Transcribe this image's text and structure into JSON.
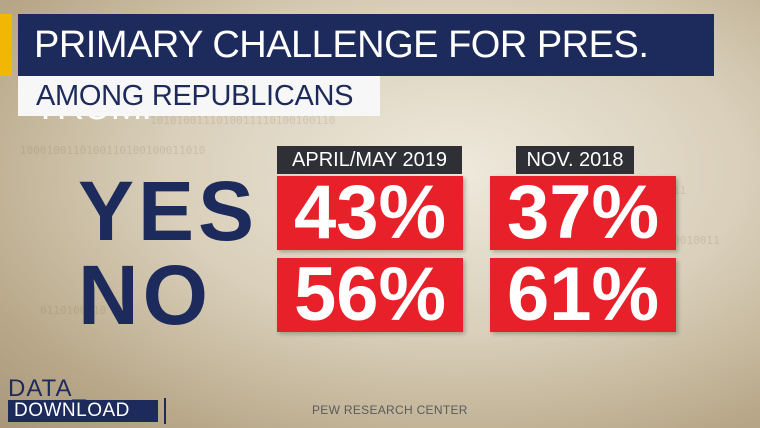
{
  "header": {
    "title": "PRIMARY CHALLENGE FOR PRES. TRUMP",
    "subtitle": "AMONG REPUBLICANS"
  },
  "table": {
    "columns": [
      "APRIL/MAY 2019",
      "NOV. 2018"
    ],
    "rows": [
      {
        "label": "YES",
        "values": [
          "43%",
          "37%"
        ]
      },
      {
        "label": "NO",
        "values": [
          "56%",
          "61%"
        ]
      }
    ]
  },
  "branding": {
    "line1": "DATA_",
    "line2": "DOWNLOAD"
  },
  "source": "PEW RESEARCH CENTER",
  "colors": {
    "navy": "#1d2a5c",
    "red": "#e8202a",
    "gold": "#f2b705",
    "dark_header": "#2e3035"
  }
}
